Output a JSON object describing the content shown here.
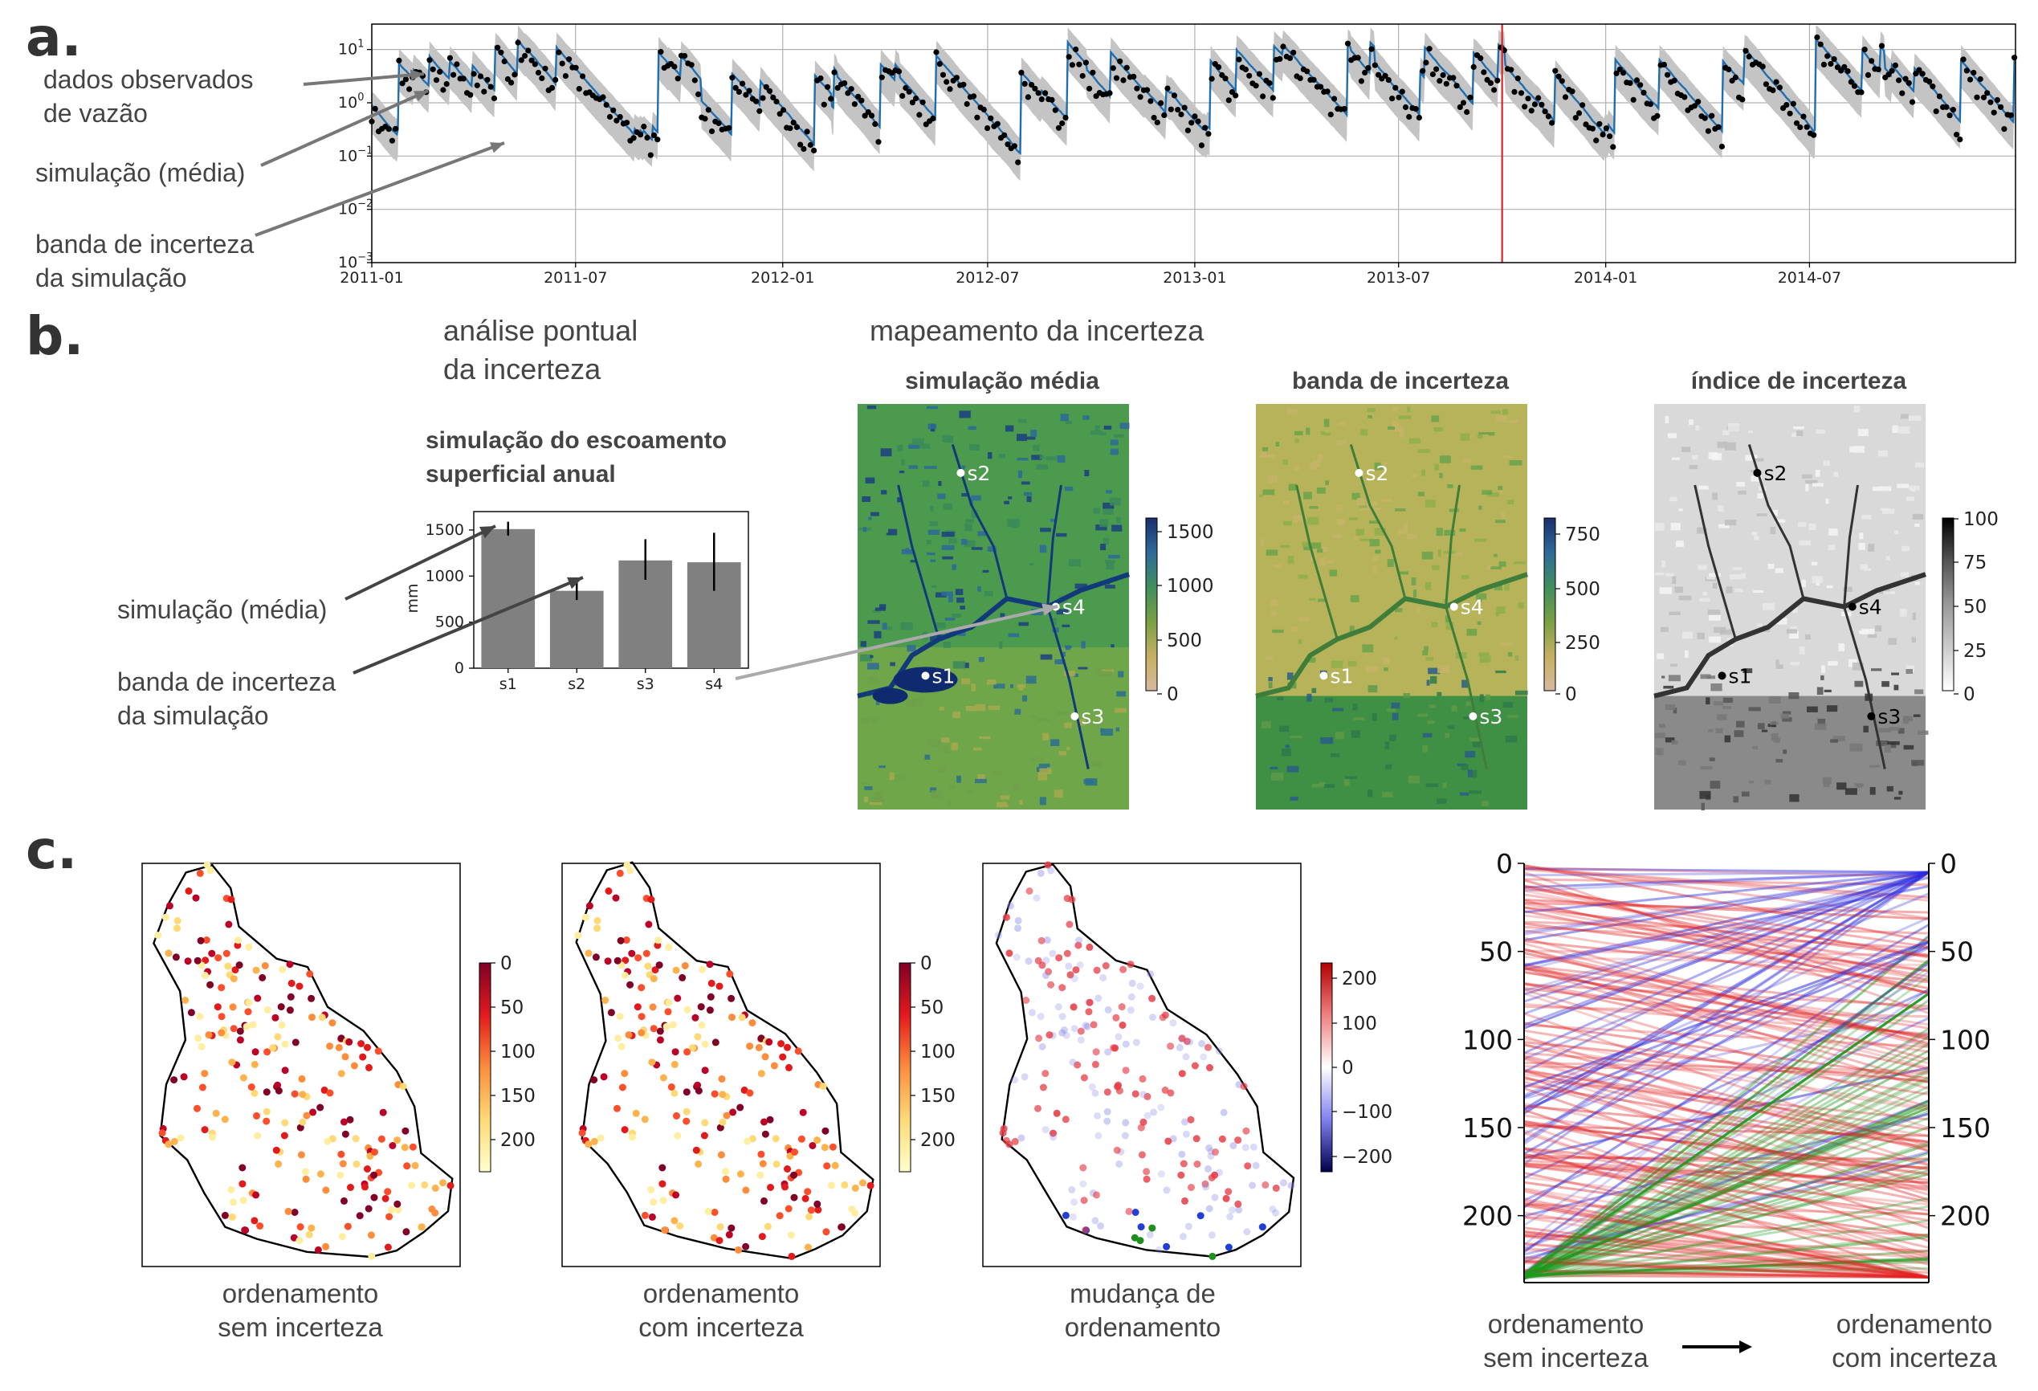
{
  "panel_labels": {
    "a": "a.",
    "b": "b.",
    "c": "c."
  },
  "panel_a": {
    "annotations": {
      "observed": [
        "dados observados",
        "de vazão"
      ],
      "mean": "simulação (média)",
      "band": [
        "banda de incerteza",
        "da simulação"
      ]
    },
    "chart_data": {
      "type": "line",
      "yscale": "log",
      "ylim": [
        0.001,
        30
      ],
      "y_ticks": [
        "10^1",
        "10^0",
        "10^-1",
        "10^-2",
        "10^-3"
      ],
      "x_ticks": [
        "2011-01",
        "2011-07",
        "2012-01",
        "2012-07",
        "2013-01",
        "2013-07",
        "2014-01",
        "2014-07"
      ],
      "xlim": [
        "2011-01-01",
        "2014-12-31"
      ],
      "series": [
        {
          "name": "dados observados de vazão",
          "style": "black dots"
        },
        {
          "name": "simulação (média)",
          "style": "blue line"
        },
        {
          "name": "banda de incerteza da simulação",
          "style": "grey band"
        }
      ],
      "vertical_marker": {
        "date": "2013-10-01",
        "color": "#d62728"
      },
      "grid": true
    }
  },
  "panel_b": {
    "left_heading": [
      "análise pontual",
      "da incerteza"
    ],
    "right_heading": "mapeamento da incerteza",
    "annotations": {
      "mean": "simulação (média)",
      "band": [
        "banda de incerteza",
        "da simulação"
      ]
    },
    "bar_title": [
      "simulação do escoamento",
      "superficial anual"
    ],
    "chart_data": {
      "type": "bar",
      "categories": [
        "s1",
        "s2",
        "s3",
        "s4"
      ],
      "values": [
        1510,
        840,
        1170,
        1150
      ],
      "error": [
        [
          1440,
          1590
        ],
        [
          740,
          940
        ],
        [
          960,
          1400
        ],
        [
          840,
          1470
        ]
      ],
      "ylabel": "mm",
      "ylim": [
        0,
        1700
      ],
      "y_ticks": [
        0,
        500,
        1000,
        1500
      ],
      "bar_color": "#808080"
    },
    "maps": [
      {
        "title": "simulação média",
        "colorbar_ticks": [
          "1500",
          "1000",
          "500",
          "0"
        ],
        "colormap": "gist_earth-like (beige–green–blue)"
      },
      {
        "title": "banda de incerteza",
        "colorbar_ticks": [
          "750",
          "500",
          "250",
          "0"
        ],
        "colormap": "gist_earth-like (beige–green–blue)"
      },
      {
        "title": "índice de incerteza",
        "colorbar_ticks": [
          "100",
          "75",
          "50",
          "25",
          "0"
        ],
        "colormap": "greys"
      }
    ],
    "sites": [
      "s1",
      "s2",
      "s3",
      "s4"
    ]
  },
  "panel_c": {
    "maps": [
      {
        "caption": [
          "ordenamento",
          "sem incerteza"
        ],
        "colorbar_ticks": [
          "0",
          "50",
          "100",
          "150",
          "200"
        ],
        "colormap": "YlOrRd (reversed)"
      },
      {
        "caption": [
          "ordenamento",
          "com incerteza"
        ],
        "colorbar_ticks": [
          "0",
          "50",
          "100",
          "150",
          "200"
        ],
        "colormap": "YlOrRd (reversed)"
      },
      {
        "caption": [
          "mudança de",
          "ordenamento"
        ],
        "colorbar_ticks": [
          "200",
          "100",
          "0",
          "−100",
          "−200"
        ],
        "colormap": "seismic (blue–white–red)"
      }
    ],
    "slope_chart": {
      "left_axis_ticks": [
        "0",
        "50",
        "100",
        "150",
        "200"
      ],
      "right_axis_ticks": [
        "0",
        "50",
        "100",
        "150",
        "200"
      ],
      "ylim": [
        0,
        238
      ],
      "left_label": [
        "ordenamento",
        "sem incerteza"
      ],
      "right_label": [
        "ordenamento",
        "com incerteza"
      ],
      "colors": {
        "worse": "#e32222",
        "better": "#2a2ae0",
        "new": "#1e9a1e"
      }
    }
  }
}
